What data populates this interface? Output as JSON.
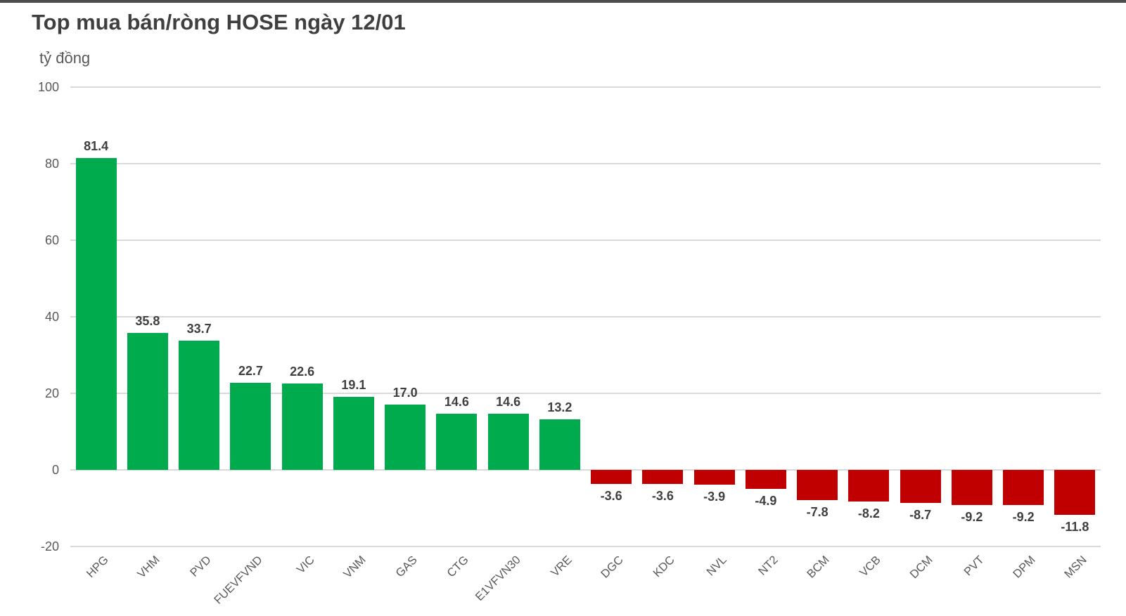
{
  "chart": {
    "title": "Top mua bán/ròng HOSE ngày 12/01",
    "units_label": "tỷ đồng"
  },
  "chart_data": {
    "type": "bar",
    "title": "Top mua bán/ròng HOSE ngày 12/01",
    "xlabel": "",
    "ylabel": "tỷ đồng",
    "categories": [
      "HPG",
      "VHM",
      "PVD",
      "FUEVFVND",
      "VIC",
      "VNM",
      "GAS",
      "CTG",
      "E1VFVN30",
      "VRE",
      "DGC",
      "KDC",
      "NVL",
      "NT2",
      "BCM",
      "VCB",
      "DCM",
      "PVT",
      "DPM",
      "MSN"
    ],
    "values": [
      81.4,
      35.8,
      33.7,
      22.7,
      22.6,
      19.1,
      17.0,
      14.6,
      14.6,
      13.2,
      -3.6,
      -3.6,
      -3.9,
      -4.9,
      -7.8,
      -8.2,
      -8.7,
      -9.2,
      -9.2,
      -11.8
    ],
    "value_labels": [
      "81.4",
      "35.8",
      "33.7",
      "22.7",
      "22.6",
      "19.1",
      "17.0",
      "14.6",
      "14.6",
      "13.2",
      "-3.6",
      "-3.6",
      "-3.9",
      "-4.9",
      "-7.8",
      "-8.2",
      "-8.7",
      "-9.2",
      "-9.2",
      "-11.8"
    ],
    "y_ticks": [
      100,
      80,
      60,
      40,
      20,
      0,
      -20
    ],
    "ylim": [
      -20,
      100
    ],
    "grid": true,
    "legend_position": "none",
    "positive_color": "#00ab4e",
    "negative_color": "#c00000",
    "gridline_color": "#d9d9d9"
  }
}
